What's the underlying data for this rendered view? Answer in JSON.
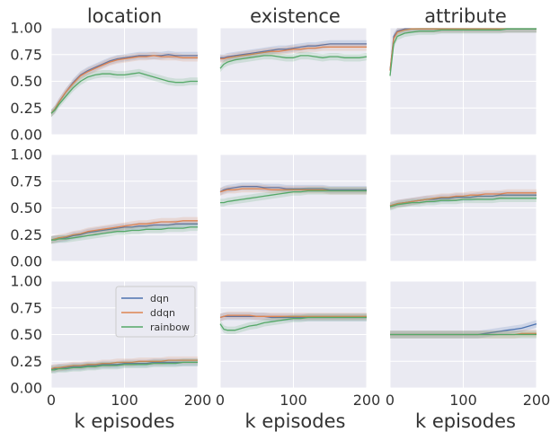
{
  "chart_data": {
    "type": "line",
    "layout": "3x3 grid of subplots",
    "column_titles": [
      "location",
      "existence",
      "attribute"
    ],
    "xlabel": "k episodes",
    "xlim": [
      0,
      200
    ],
    "ylim": [
      0,
      1
    ],
    "xticks": [
      0,
      100,
      200
    ],
    "yticks": [
      "0.00",
      "0.25",
      "0.50",
      "0.75",
      "1.00"
    ],
    "grid": true,
    "legend": {
      "entries": [
        "dqn",
        "ddqn",
        "rainbow"
      ],
      "placement": "upper-right of bottom-left subplot"
    },
    "series_colors": {
      "dqn": "#4c72b0",
      "ddqn": "#dd8452",
      "rainbow": "#55a868"
    },
    "x": [
      0,
      5,
      10,
      20,
      30,
      40,
      50,
      60,
      70,
      80,
      90,
      100,
      110,
      120,
      130,
      140,
      150,
      160,
      170,
      180,
      190,
      200
    ],
    "panels": [
      {
        "row": 0,
        "col": 0,
        "series": [
          {
            "name": "dqn",
            "values": [
              0.2,
              0.24,
              0.3,
              0.4,
              0.49,
              0.56,
              0.6,
              0.63,
              0.66,
              0.69,
              0.71,
              0.72,
              0.73,
              0.74,
              0.74,
              0.74,
              0.74,
              0.75,
              0.74,
              0.74,
              0.74,
              0.74
            ]
          },
          {
            "name": "ddqn",
            "values": [
              0.2,
              0.24,
              0.3,
              0.4,
              0.48,
              0.55,
              0.59,
              0.62,
              0.65,
              0.68,
              0.7,
              0.71,
              0.72,
              0.73,
              0.73,
              0.74,
              0.73,
              0.73,
              0.73,
              0.72,
              0.72,
              0.72
            ]
          },
          {
            "name": "rainbow",
            "values": [
              0.2,
              0.23,
              0.28,
              0.36,
              0.44,
              0.5,
              0.54,
              0.56,
              0.57,
              0.57,
              0.56,
              0.56,
              0.57,
              0.58,
              0.56,
              0.54,
              0.52,
              0.5,
              0.49,
              0.49,
              0.5,
              0.5
            ]
          }
        ]
      },
      {
        "row": 0,
        "col": 1,
        "series": [
          {
            "name": "dqn",
            "values": [
              0.72,
              0.72,
              0.73,
              0.74,
              0.75,
              0.76,
              0.77,
              0.78,
              0.79,
              0.8,
              0.8,
              0.81,
              0.82,
              0.83,
              0.83,
              0.84,
              0.85,
              0.85,
              0.85,
              0.85,
              0.85,
              0.85
            ]
          },
          {
            "name": "ddqn",
            "values": [
              0.71,
              0.71,
              0.72,
              0.73,
              0.74,
              0.75,
              0.76,
              0.77,
              0.78,
              0.78,
              0.79,
              0.8,
              0.8,
              0.81,
              0.81,
              0.82,
              0.82,
              0.82,
              0.82,
              0.82,
              0.82,
              0.82
            ]
          },
          {
            "name": "rainbow",
            "values": [
              0.62,
              0.66,
              0.68,
              0.7,
              0.71,
              0.72,
              0.73,
              0.74,
              0.74,
              0.73,
              0.72,
              0.72,
              0.74,
              0.74,
              0.73,
              0.72,
              0.73,
              0.73,
              0.72,
              0.72,
              0.72,
              0.73
            ]
          }
        ]
      },
      {
        "row": 0,
        "col": 2,
        "series": [
          {
            "name": "dqn",
            "values": [
              0.6,
              0.92,
              0.97,
              0.99,
              0.99,
              0.99,
              0.99,
              0.99,
              0.99,
              0.99,
              0.99,
              0.99,
              0.99,
              0.99,
              0.99,
              0.99,
              0.99,
              0.99,
              0.99,
              0.99,
              0.99,
              0.99
            ]
          },
          {
            "name": "ddqn",
            "values": [
              0.6,
              0.9,
              0.96,
              0.98,
              0.99,
              0.99,
              0.99,
              0.99,
              0.99,
              0.99,
              0.99,
              0.99,
              0.99,
              0.99,
              0.99,
              0.99,
              0.99,
              0.99,
              0.99,
              0.99,
              0.99,
              0.99
            ]
          },
          {
            "name": "rainbow",
            "values": [
              0.55,
              0.85,
              0.92,
              0.95,
              0.96,
              0.97,
              0.97,
              0.97,
              0.98,
              0.98,
              0.98,
              0.98,
              0.98,
              0.98,
              0.98,
              0.98,
              0.98,
              0.99,
              0.99,
              0.99,
              0.99,
              0.99
            ]
          }
        ]
      },
      {
        "row": 1,
        "col": 0,
        "series": [
          {
            "name": "dqn",
            "values": [
              0.2,
              0.21,
              0.21,
              0.22,
              0.24,
              0.25,
              0.27,
              0.28,
              0.29,
              0.3,
              0.31,
              0.32,
              0.32,
              0.33,
              0.33,
              0.34,
              0.34,
              0.34,
              0.35,
              0.35,
              0.35,
              0.35
            ]
          },
          {
            "name": "ddqn",
            "values": [
              0.2,
              0.21,
              0.22,
              0.23,
              0.25,
              0.26,
              0.28,
              0.29,
              0.3,
              0.31,
              0.32,
              0.33,
              0.34,
              0.35,
              0.35,
              0.36,
              0.37,
              0.37,
              0.37,
              0.38,
              0.38,
              0.38
            ]
          },
          {
            "name": "rainbow",
            "values": [
              0.2,
              0.2,
              0.21,
              0.21,
              0.22,
              0.23,
              0.24,
              0.25,
              0.26,
              0.27,
              0.28,
              0.28,
              0.29,
              0.29,
              0.3,
              0.3,
              0.3,
              0.31,
              0.31,
              0.31,
              0.32,
              0.32
            ]
          }
        ]
      },
      {
        "row": 1,
        "col": 1,
        "series": [
          {
            "name": "dqn",
            "values": [
              0.65,
              0.67,
              0.68,
              0.69,
              0.7,
              0.7,
              0.7,
              0.69,
              0.69,
              0.69,
              0.68,
              0.68,
              0.68,
              0.68,
              0.68,
              0.68,
              0.67,
              0.67,
              0.67,
              0.67,
              0.67,
              0.67
            ]
          },
          {
            "name": "ddqn",
            "values": [
              0.65,
              0.66,
              0.67,
              0.67,
              0.68,
              0.68,
              0.68,
              0.68,
              0.67,
              0.67,
              0.67,
              0.67,
              0.67,
              0.67,
              0.67,
              0.67,
              0.66,
              0.66,
              0.66,
              0.66,
              0.66,
              0.66
            ]
          },
          {
            "name": "rainbow",
            "values": [
              0.55,
              0.55,
              0.56,
              0.57,
              0.58,
              0.59,
              0.6,
              0.61,
              0.62,
              0.63,
              0.64,
              0.65,
              0.65,
              0.66,
              0.66,
              0.66,
              0.66,
              0.66,
              0.66,
              0.66,
              0.66,
              0.66
            ]
          }
        ]
      },
      {
        "row": 1,
        "col": 2,
        "series": [
          {
            "name": "dqn",
            "values": [
              0.52,
              0.53,
              0.54,
              0.55,
              0.56,
              0.57,
              0.58,
              0.58,
              0.59,
              0.59,
              0.6,
              0.6,
              0.6,
              0.61,
              0.61,
              0.61,
              0.62,
              0.62,
              0.62,
              0.62,
              0.62,
              0.62
            ]
          },
          {
            "name": "ddqn",
            "values": [
              0.52,
              0.53,
              0.54,
              0.55,
              0.56,
              0.57,
              0.58,
              0.59,
              0.6,
              0.6,
              0.61,
              0.61,
              0.62,
              0.62,
              0.63,
              0.63,
              0.63,
              0.64,
              0.64,
              0.64,
              0.64,
              0.64
            ]
          },
          {
            "name": "rainbow",
            "values": [
              0.51,
              0.52,
              0.53,
              0.54,
              0.55,
              0.55,
              0.56,
              0.56,
              0.57,
              0.57,
              0.57,
              0.58,
              0.58,
              0.58,
              0.58,
              0.58,
              0.59,
              0.59,
              0.59,
              0.59,
              0.59,
              0.59
            ]
          }
        ]
      },
      {
        "row": 2,
        "col": 0,
        "series": [
          {
            "name": "dqn",
            "values": [
              0.18,
              0.18,
              0.19,
              0.19,
              0.2,
              0.2,
              0.21,
              0.21,
              0.22,
              0.22,
              0.22,
              0.23,
              0.23,
              0.23,
              0.23,
              0.24,
              0.24,
              0.24,
              0.24,
              0.24,
              0.24,
              0.24
            ]
          },
          {
            "name": "ddqn",
            "values": [
              0.18,
              0.19,
              0.19,
              0.2,
              0.21,
              0.21,
              0.22,
              0.22,
              0.23,
              0.23,
              0.24,
              0.24,
              0.24,
              0.25,
              0.25,
              0.25,
              0.25,
              0.26,
              0.26,
              0.26,
              0.26,
              0.26
            ]
          },
          {
            "name": "rainbow",
            "values": [
              0.17,
              0.17,
              0.18,
              0.18,
              0.19,
              0.19,
              0.2,
              0.2,
              0.21,
              0.21,
              0.21,
              0.22,
              0.22,
              0.22,
              0.22,
              0.23,
              0.23,
              0.23,
              0.23,
              0.24,
              0.24,
              0.24
            ]
          }
        ]
      },
      {
        "row": 2,
        "col": 1,
        "series": [
          {
            "name": "dqn",
            "values": [
              0.66,
              0.67,
              0.67,
              0.67,
              0.67,
              0.67,
              0.67,
              0.67,
              0.66,
              0.66,
              0.66,
              0.66,
              0.66,
              0.66,
              0.66,
              0.66,
              0.66,
              0.66,
              0.66,
              0.66,
              0.66,
              0.66
            ]
          },
          {
            "name": "ddqn",
            "values": [
              0.66,
              0.67,
              0.68,
              0.68,
              0.68,
              0.68,
              0.67,
              0.67,
              0.67,
              0.67,
              0.67,
              0.67,
              0.67,
              0.67,
              0.67,
              0.67,
              0.67,
              0.67,
              0.67,
              0.67,
              0.67,
              0.67
            ]
          },
          {
            "name": "rainbow",
            "values": [
              0.6,
              0.55,
              0.54,
              0.54,
              0.56,
              0.58,
              0.59,
              0.61,
              0.62,
              0.63,
              0.64,
              0.65,
              0.65,
              0.66,
              0.66,
              0.66,
              0.66,
              0.66,
              0.66,
              0.66,
              0.66,
              0.66
            ]
          }
        ]
      },
      {
        "row": 2,
        "col": 2,
        "series": [
          {
            "name": "dqn",
            "values": [
              0.5,
              0.5,
              0.5,
              0.5,
              0.5,
              0.5,
              0.5,
              0.5,
              0.5,
              0.5,
              0.5,
              0.5,
              0.5,
              0.5,
              0.51,
              0.52,
              0.53,
              0.54,
              0.55,
              0.56,
              0.58,
              0.6
            ]
          },
          {
            "name": "ddqn",
            "values": [
              0.5,
              0.5,
              0.5,
              0.5,
              0.5,
              0.5,
              0.5,
              0.5,
              0.5,
              0.5,
              0.5,
              0.5,
              0.5,
              0.5,
              0.5,
              0.5,
              0.5,
              0.5,
              0.5,
              0.51,
              0.51,
              0.51
            ]
          },
          {
            "name": "rainbow",
            "values": [
              0.5,
              0.5,
              0.5,
              0.5,
              0.5,
              0.5,
              0.5,
              0.5,
              0.5,
              0.5,
              0.5,
              0.5,
              0.5,
              0.5,
              0.5,
              0.5,
              0.5,
              0.5,
              0.5,
              0.5,
              0.5,
              0.5
            ]
          }
        ]
      }
    ]
  }
}
